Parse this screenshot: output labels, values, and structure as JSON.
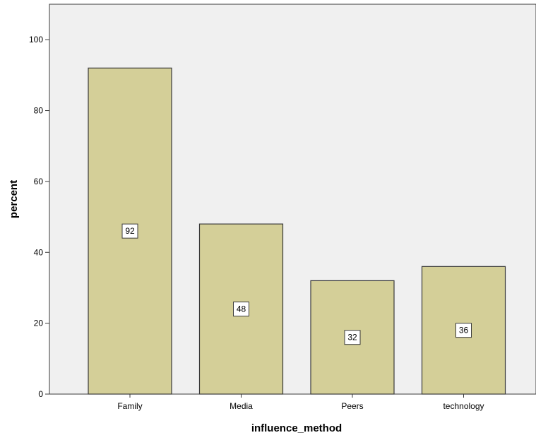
{
  "chart_data": {
    "type": "bar",
    "categories": [
      "Family",
      "Media",
      "Peers",
      "technology"
    ],
    "values": [
      92,
      48,
      32,
      36
    ],
    "data_labels": [
      "92",
      "48",
      "32",
      "36"
    ],
    "xlabel": "influence_method",
    "ylabel": "percent",
    "ylim": [
      0,
      110
    ],
    "yticks": [
      0,
      20,
      40,
      60,
      80,
      100
    ],
    "ytick_labels": [
      "0",
      "20",
      "40",
      "60",
      "80",
      "100"
    ],
    "grid": false,
    "colors": {
      "bar_fill": "#d4cf98",
      "bar_stroke": "#3a3a3a",
      "plot_background": "#f0f0f0",
      "label_box_fill": "#ffffff"
    }
  }
}
